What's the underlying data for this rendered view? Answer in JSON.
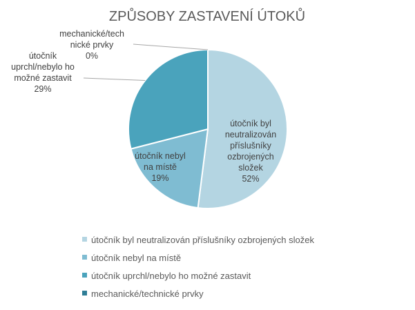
{
  "chart_data": {
    "type": "pie",
    "title": "ZPŮSOBY ZASTAVENÍ ÚTOKŮ",
    "categories": [
      "útočník byl neutralizován příslušníky ozbrojených složek",
      "útočník nebyl na místě",
      "útočník uprchl/nebylo ho možné zastavit",
      "mechanické/technické prvky"
    ],
    "values": [
      52,
      19,
      29,
      0
    ],
    "unit": "%",
    "data_labels": [
      [
        "útočník byl",
        "neutralizován",
        "příslušníky",
        "ozbrojených",
        "složek",
        "52%"
      ],
      [
        "útočník nebyl",
        "na místě",
        "19%"
      ],
      [
        "útočník",
        "uprchl/nebylo ho",
        "možné zastavit",
        "29%"
      ],
      [
        "mechanické/tech",
        "nické prvky",
        "0%"
      ]
    ],
    "colors": [
      "#b4d5e2",
      "#7fbcd2",
      "#4aa3bc",
      "#2e7d96"
    ],
    "legend_position": "bottom"
  }
}
